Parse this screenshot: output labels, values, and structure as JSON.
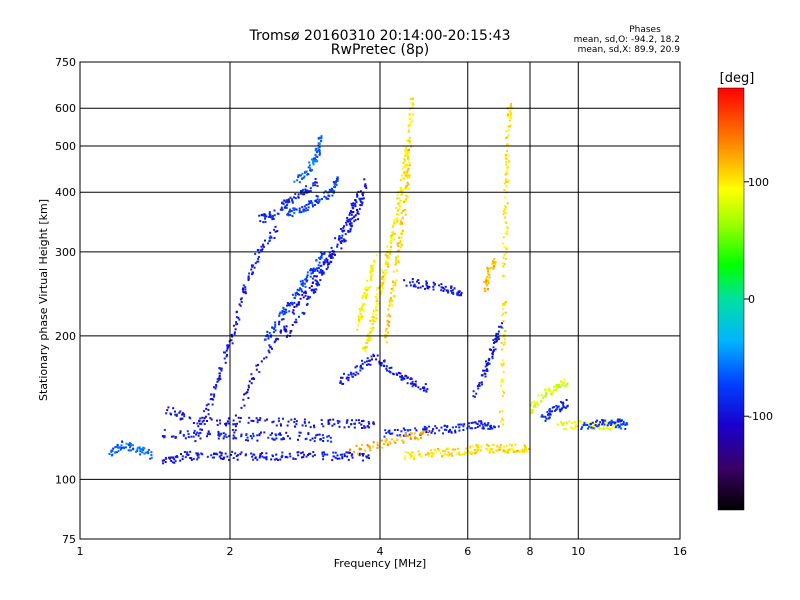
{
  "chart_data": {
    "type": "scatter",
    "title": "Tromsø 20160310 20:14:00-20:15:43",
    "subtitle": "RwPretec (8p)",
    "xlabel": "Frequency [MHz]",
    "ylabel": "Stationary phase Virtual Height [km]",
    "x_scale": "log",
    "y_scale": "log",
    "xlim": [
      1,
      16
    ],
    "ylim": [
      75,
      750
    ],
    "x_ticks": [
      1,
      2,
      4,
      6,
      8,
      10,
      16
    ],
    "x_tick_labels": [
      "1",
      "2",
      "4",
      "6",
      "8",
      "10",
      "16"
    ],
    "y_ticks": [
      75,
      100,
      200,
      300,
      400,
      500,
      600,
      750
    ],
    "y_tick_labels": [
      "75",
      "100",
      "200",
      "300",
      "400",
      "500",
      "600",
      "750"
    ],
    "grid": true,
    "legend_note": {
      "heading": "Phases",
      "line1": "mean, sd,O: -94.2, 18.2",
      "line2": "mean, sd,X:  89.9, 20.9"
    },
    "colorbar": {
      "label": "[deg]",
      "range": [
        -180,
        180
      ],
      "ticks": [
        100,
        0,
        -100
      ],
      "tick_labels": [
        "100",
        "0",
        "-100"
      ]
    },
    "traces": [
      {
        "phase": -95,
        "points": [
          [
            1.45,
            108
          ],
          [
            1.6,
            112
          ],
          [
            1.8,
            112
          ],
          [
            2.0,
            112
          ],
          [
            2.3,
            112
          ],
          [
            2.6,
            112
          ],
          [
            3.0,
            112
          ],
          [
            3.4,
            112
          ],
          [
            3.8,
            111
          ]
        ]
      },
      {
        "phase": -95,
        "points": [
          [
            1.5,
            140
          ],
          [
            1.7,
            133
          ],
          [
            2.0,
            132
          ],
          [
            2.5,
            132
          ],
          [
            3.0,
            131
          ],
          [
            3.5,
            131
          ],
          [
            3.9,
            130
          ]
        ]
      },
      {
        "phase": -90,
        "points": [
          [
            1.45,
            125
          ],
          [
            1.7,
            124
          ],
          [
            2.0,
            123
          ],
          [
            2.4,
            123
          ],
          [
            2.8,
            123
          ],
          [
            3.2,
            122
          ]
        ]
      },
      {
        "phase": -95,
        "points": [
          [
            1.7,
            120
          ],
          [
            1.85,
            150
          ],
          [
            1.95,
            180
          ],
          [
            2.05,
            210
          ],
          [
            2.15,
            260
          ],
          [
            2.3,
            300
          ],
          [
            2.5,
            340
          ]
        ]
      },
      {
        "phase": -100,
        "points": [
          [
            2.0,
            120
          ],
          [
            2.2,
            160
          ],
          [
            2.5,
            200
          ],
          [
            2.8,
            240
          ],
          [
            3.1,
            280
          ],
          [
            3.4,
            320
          ],
          [
            3.6,
            360
          ],
          [
            3.75,
            420
          ]
        ]
      },
      {
        "phase": -92,
        "points": [
          [
            2.6,
            200
          ],
          [
            2.9,
            240
          ],
          [
            3.1,
            280
          ],
          [
            3.3,
            320
          ],
          [
            3.5,
            360
          ],
          [
            3.6,
            400
          ]
        ]
      },
      {
        "phase": -80,
        "points": [
          [
            2.35,
            195
          ],
          [
            2.5,
            215
          ],
          [
            2.65,
            235
          ],
          [
            2.8,
            255
          ],
          [
            2.95,
            275
          ],
          [
            3.1,
            300
          ]
        ]
      },
      {
        "phase": -75,
        "points": [
          [
            2.6,
            360
          ],
          [
            2.8,
            370
          ],
          [
            3.0,
            385
          ],
          [
            3.2,
            400
          ],
          [
            3.3,
            430
          ]
        ]
      },
      {
        "phase": -85,
        "points": [
          [
            2.3,
            350
          ],
          [
            2.45,
            360
          ],
          [
            2.6,
            380
          ],
          [
            2.8,
            400
          ],
          [
            3.0,
            420
          ]
        ]
      },
      {
        "phase": -60,
        "points": [
          [
            2.7,
            420
          ],
          [
            2.9,
            450
          ],
          [
            3.0,
            480
          ],
          [
            3.05,
            520
          ]
        ]
      },
      {
        "phase": -95,
        "points": [
          [
            3.3,
            160
          ],
          [
            3.6,
            170
          ],
          [
            3.9,
            180
          ],
          [
            4.2,
            170
          ],
          [
            4.6,
            160
          ],
          [
            5.0,
            155
          ]
        ]
      },
      {
        "phase": -90,
        "points": [
          [
            4.1,
            125
          ],
          [
            4.6,
            126
          ],
          [
            5.2,
            127
          ],
          [
            5.8,
            128
          ],
          [
            6.4,
            130
          ],
          [
            7.0,
            130
          ]
        ]
      },
      {
        "phase": -95,
        "points": [
          [
            4.5,
            260
          ],
          [
            5.0,
            255
          ],
          [
            5.5,
            250
          ],
          [
            5.8,
            245
          ]
        ]
      },
      {
        "phase": 100,
        "points": [
          [
            3.7,
            180
          ],
          [
            3.8,
            200
          ],
          [
            3.9,
            220
          ],
          [
            4.0,
            250
          ],
          [
            4.1,
            280
          ],
          [
            4.2,
            310
          ],
          [
            4.3,
            350
          ],
          [
            4.4,
            400
          ],
          [
            4.5,
            460
          ],
          [
            4.6,
            540
          ],
          [
            4.65,
            630
          ]
        ]
      },
      {
        "phase": 110,
        "points": [
          [
            4.1,
            195
          ],
          [
            4.2,
            230
          ],
          [
            4.3,
            270
          ],
          [
            4.4,
            320
          ],
          [
            4.5,
            380
          ],
          [
            4.55,
            440
          ],
          [
            4.6,
            520
          ]
        ]
      },
      {
        "phase": 95,
        "points": [
          [
            3.6,
            210
          ],
          [
            3.7,
            230
          ],
          [
            3.8,
            260
          ],
          [
            3.9,
            290
          ]
        ]
      },
      {
        "phase": 100,
        "points": [
          [
            7.0,
            130
          ],
          [
            7.05,
            180
          ],
          [
            7.1,
            250
          ],
          [
            7.15,
            350
          ],
          [
            7.2,
            450
          ],
          [
            7.25,
            550
          ],
          [
            7.3,
            630
          ]
        ]
      },
      {
        "phase": 115,
        "points": [
          [
            6.5,
            250
          ],
          [
            6.6,
            270
          ],
          [
            6.8,
            290
          ]
        ]
      },
      {
        "phase": -90,
        "points": [
          [
            6.2,
            150
          ],
          [
            6.5,
            170
          ],
          [
            6.8,
            190
          ],
          [
            7.0,
            210
          ]
        ]
      },
      {
        "phase": 80,
        "points": [
          [
            8.0,
            140
          ],
          [
            8.5,
            150
          ],
          [
            9.0,
            155
          ],
          [
            9.5,
            160
          ]
        ]
      },
      {
        "phase": -90,
        "points": [
          [
            8.5,
            135
          ],
          [
            9.0,
            140
          ],
          [
            9.5,
            145
          ]
        ]
      },
      {
        "phase": 90,
        "points": [
          [
            9.0,
            130
          ],
          [
            10.0,
            130
          ],
          [
            11.0,
            130
          ],
          [
            12.0,
            130
          ]
        ]
      },
      {
        "phase": -80,
        "points": [
          [
            10.2,
            130
          ],
          [
            11.0,
            131
          ],
          [
            12.0,
            131
          ],
          [
            12.5,
            130
          ]
        ]
      },
      {
        "phase": 105,
        "points": [
          [
            4.5,
            112
          ],
          [
            5.0,
            113
          ],
          [
            5.5,
            114
          ],
          [
            6.0,
            115
          ],
          [
            6.5,
            116
          ],
          [
            7.0,
            116
          ],
          [
            7.5,
            116
          ],
          [
            8.0,
            116
          ]
        ]
      },
      {
        "phase": -60,
        "points": [
          [
            1.15,
            112
          ],
          [
            1.22,
            118
          ],
          [
            1.3,
            116
          ],
          [
            1.4,
            112
          ]
        ]
      },
      {
        "phase": 120,
        "points": [
          [
            3.5,
            115
          ],
          [
            4.0,
            118
          ],
          [
            4.5,
            122
          ],
          [
            5.0,
            125
          ]
        ]
      }
    ]
  }
}
